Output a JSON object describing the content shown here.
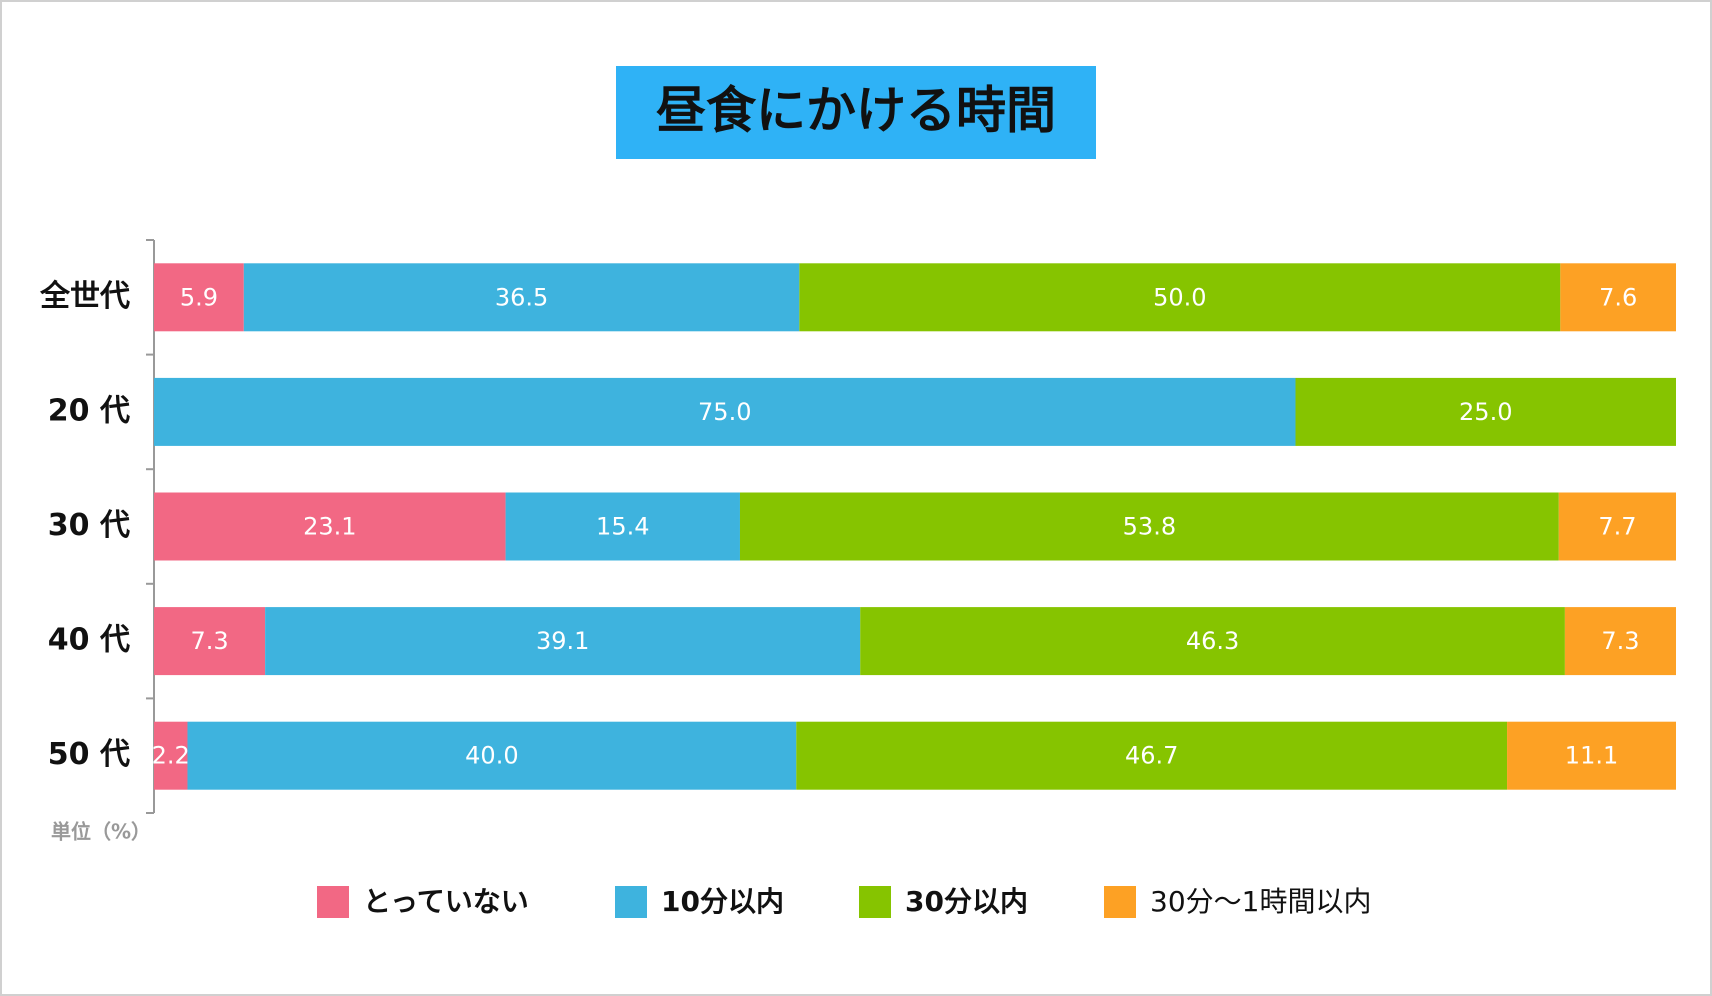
{
  "chart_data": {
    "type": "stacked-bar-horizontal",
    "title": "昼食にかける時間",
    "unit_label": "単位（%）",
    "categories": [
      "全世代",
      "20 代",
      "30 代",
      "40 代",
      "50 代"
    ],
    "xlim": [
      0,
      100
    ],
    "series": [
      {
        "name": "とっていない",
        "color": "#f26884",
        "values": [
          5.9,
          null,
          23.1,
          7.3,
          2.2
        ],
        "value_labels": [
          "5.9",
          null,
          "23.1",
          "7.3",
          "2.2"
        ]
      },
      {
        "name": "10分以内",
        "color": "#3eb3de",
        "values": [
          36.5,
          75,
          15.4,
          39.1,
          40
        ],
        "value_labels": [
          "36.5",
          "75.0",
          "15.4",
          "39.1",
          "40.0"
        ]
      },
      {
        "name": "30分以内",
        "color": "#86c400",
        "values": [
          50,
          25,
          53.8,
          46.3,
          46.7
        ],
        "value_labels": [
          "50.0",
          "25.0",
          "53.8",
          "46.3",
          "46.7"
        ]
      },
      {
        "name": "30分〜1時間以内",
        "color": "#fda124",
        "values": [
          7.6,
          null,
          7.7,
          7.3,
          11.1
        ],
        "value_labels": [
          "7.6",
          null,
          "7.7",
          "7.3",
          "11.1"
        ]
      }
    ],
    "legend": "bottom"
  }
}
